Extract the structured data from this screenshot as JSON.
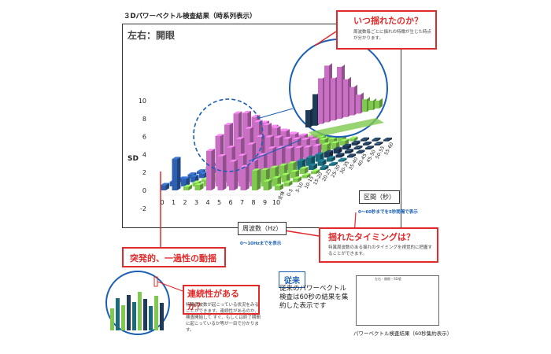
{
  "heading": "３Dパワーベクトル検査結果（時系列表示）",
  "panel_title": "左右：開眼",
  "callouts": {
    "when": {
      "title": "いつ揺れたのか？",
      "desc": "周波数毎ごとに揺れの特徴が生じた時点が分かります。"
    },
    "timing": {
      "title": "揺れたタイミングは？",
      "desc": "特異周波数のある揺れのタイミングを視覚的に把握することができます。"
    },
    "sudden": {
      "title": "突発的、一過性の動揺"
    },
    "continuity": {
      "title": "連続性があるか？",
      "desc": "特異周波数が起こっている状況をみることができます。連続性があるのか、検査開始して すぐ、もしくは終了期間に起こっているか等が一目で分かります。"
    }
  },
  "freq_label": "周波数（Hz）",
  "freq_note": "0〜10Hzまでを表示",
  "sec_label": "区間（秒）",
  "sec_note": "0〜60秒までを5秒間隔で表示",
  "conventional": {
    "tag": "従来",
    "text": "従来のパワーベクトル検査は60秒の結果を集約した表示です"
  },
  "thumb": {
    "title": "左右・開眼・SD値",
    "caption": "パワーベクトル検査結果（60秒集約表示）"
  },
  "chart_data": {
    "type": "bar",
    "title": "３Dパワーベクトル検査結果（時系列表示）",
    "ylabel": "SD",
    "xlabel": "周波数（Hz）",
    "zlabel": "区間（秒）",
    "ylim": [
      -2,
      10
    ],
    "y_ticks": [
      "10",
      "8",
      "6",
      "4",
      "2",
      "0",
      "-2"
    ],
    "x_ticks": [
      "0",
      "1",
      "2",
      "3",
      "4",
      "5",
      "6",
      "7",
      "8",
      "9",
      "10"
    ],
    "z_ticks": [
      "全体",
      "0-5",
      "5-10",
      "10-15",
      "15-20",
      "20-25",
      "25-30",
      "30-35",
      "35-40",
      "40-45",
      "45-50",
      "50-55",
      "55-60"
    ],
    "series": [
      {
        "values": [
          0.6,
          3.5,
          0.4,
          0.6,
          4.4,
          3.8,
          3.2,
          2.6,
          2.2,
          1.0,
          0.5
        ]
      },
      {
        "values": [
          0.5,
          0.8,
          0.4,
          0.7,
          5.6,
          4.3,
          3.4,
          2.8,
          1.8,
          0.9,
          0.4
        ]
      },
      {
        "values": [
          0.4,
          0.6,
          0.3,
          0.8,
          6.4,
          4.8,
          4.2,
          3.0,
          1.6,
          0.8,
          0.4
        ]
      },
      {
        "values": [
          0.4,
          0.5,
          0.3,
          0.9,
          7.2,
          5.5,
          4.6,
          3.3,
          1.4,
          0.7,
          0.3
        ]
      },
      {
        "values": [
          0.3,
          0.5,
          0.3,
          0.8,
          6.8,
          5.8,
          4.1,
          2.9,
          1.2,
          0.6,
          0.3
        ]
      },
      {
        "values": [
          0.3,
          0.4,
          0.2,
          0.7,
          5.9,
          5.0,
          3.6,
          2.4,
          1.0,
          0.5,
          0.3
        ]
      },
      {
        "values": [
          0.3,
          0.4,
          0.2,
          0.6,
          4.8,
          4.2,
          3.0,
          2.0,
          0.9,
          0.5,
          0.2
        ]
      },
      {
        "values": [
          0.2,
          0.3,
          0.2,
          0.5,
          3.9,
          3.4,
          2.5,
          1.6,
          0.8,
          0.4,
          0.2
        ]
      },
      {
        "values": [
          0.2,
          0.3,
          0.2,
          0.4,
          3.0,
          2.6,
          2.0,
          1.3,
          0.6,
          0.3,
          0.2
        ]
      },
      {
        "values": [
          0.2,
          0.3,
          0.1,
          0.4,
          2.2,
          2.0,
          1.5,
          1.0,
          0.5,
          0.3,
          0.1
        ]
      },
      {
        "values": [
          0.1,
          0.2,
          0.1,
          0.3,
          1.5,
          1.4,
          1.1,
          0.7,
          0.4,
          0.2,
          0.1
        ]
      },
      {
        "values": [
          0.1,
          0.2,
          0.1,
          0.3,
          1.0,
          0.9,
          0.7,
          0.5,
          0.3,
          0.2,
          0.1
        ]
      },
      {
        "values": [
          0.1,
          0.1,
          0.1,
          0.2,
          0.6,
          0.6,
          0.4,
          0.3,
          0.2,
          0.1,
          0.1
        ]
      }
    ],
    "colors": {
      "blue": "#2d5fb0",
      "pink": "#c96fc4",
      "green": "#7ec94e",
      "teal": "#1a6b7c",
      "dark": "#1f3b57"
    }
  }
}
